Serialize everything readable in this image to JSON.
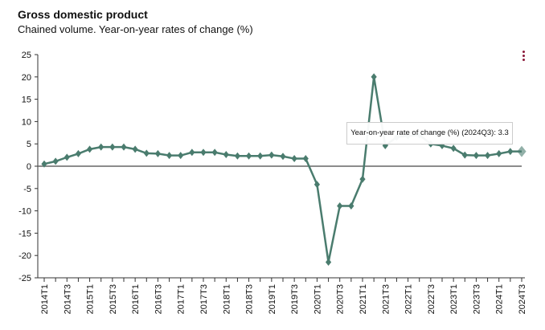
{
  "header": {
    "title": "Gross domestic product",
    "subtitle": "Chained volume. Year-on-year rates of change (%)",
    "menu_icon": "vertical-ellipsis-icon"
  },
  "tooltip": {
    "text": "Year-on-year rate of change (%) (2024Q3): 3.3"
  },
  "colors": {
    "line": "#4a7c6e",
    "axis": "#666666",
    "menu": "#8b1a3a"
  },
  "chart_data": {
    "type": "line",
    "title": "Gross domestic product",
    "subtitle": "Chained volume. Year-on-year rates of change (%)",
    "ylim": [
      -25,
      25
    ],
    "yticks": [
      25,
      20,
      15,
      10,
      5,
      0,
      -5,
      -10,
      -15,
      -20,
      -25
    ],
    "x": [
      "2014T1",
      "2014T2",
      "2014T3",
      "2014T4",
      "2015T1",
      "2015T2",
      "2015T3",
      "2015T4",
      "2016T1",
      "2016T2",
      "2016T3",
      "2016T4",
      "2017T1",
      "2017T2",
      "2017T3",
      "2017T4",
      "2018T1",
      "2018T2",
      "2018T3",
      "2018T4",
      "2019T1",
      "2019T2",
      "2019T3",
      "2019T4",
      "2020T1",
      "2020T2",
      "2020T3",
      "2020T4",
      "2021T1",
      "2021T2",
      "2021T3",
      "2021T4",
      "2022T1",
      "2022T2",
      "2022T3",
      "2022T4",
      "2023T1",
      "2023T2",
      "2023T3",
      "2023T4",
      "2024T1",
      "2024T2",
      "2024T3"
    ],
    "xtick_labels": [
      "2014T1",
      "2014T3",
      "2015T1",
      "2015T3",
      "2016T1",
      "2016T3",
      "2017T1",
      "2017T3",
      "2018T1",
      "2018T3",
      "2019T1",
      "2019T3",
      "2020T1",
      "2020T3",
      "2021T1",
      "2021T3",
      "2022T1",
      "2022T3",
      "2023T1",
      "2023T3",
      "2024T1",
      "2024T3"
    ],
    "series": [
      {
        "values": [
          0.5,
          1.1,
          2.0,
          2.8,
          3.8,
          4.3,
          4.3,
          4.3,
          3.8,
          2.9,
          2.8,
          2.4,
          2.4,
          3.1,
          3.1,
          3.1,
          2.6,
          2.3,
          2.3,
          2.3,
          2.5,
          2.2,
          1.7,
          1.7,
          -4.1,
          -21.5,
          -8.9,
          -8.9,
          -2.9,
          20.0,
          4.6,
          6.5,
          6.8,
          7.0,
          5.0,
          4.6,
          4.0,
          2.5,
          2.4,
          2.4,
          2.8,
          3.3,
          3.3
        ]
      }
    ],
    "highlighted_point": "2024T3",
    "grid": false,
    "legend": "none"
  }
}
